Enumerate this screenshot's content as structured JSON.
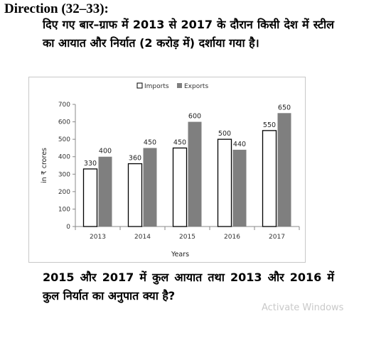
{
  "heading": "Direction (32–33):",
  "intro": "दिए गए बार–ग्राफ में 2013 से 2017 के दौरान किसी देश में स्टील का आयात और निर्यात (2 करोड़ में) दर्शाया गया है।",
  "question": "2015 और 2017 में कुल आयात तथा 2013 और 2016 में कुल निर्यात का अनुपात क्या है?",
  "watermark": "Activate Windows",
  "colors": {
    "imports_fill": "#ffffff",
    "imports_stroke": "#000000",
    "exports_fill": "#7f7f7f"
  },
  "chart_data": {
    "type": "bar",
    "categories": [
      "2013",
      "2014",
      "2015",
      "2016",
      "2017"
    ],
    "series": [
      {
        "name": "Imports",
        "values": [
          330,
          360,
          450,
          500,
          550
        ]
      },
      {
        "name": "Exports",
        "values": [
          400,
          450,
          600,
          440,
          650
        ]
      }
    ],
    "xlabel": "Years",
    "ylabel": "in ₹ crores",
    "ylim": [
      0,
      700
    ],
    "yticks": [
      0,
      100,
      200,
      300,
      400,
      500,
      600,
      700
    ],
    "grid": false,
    "legend": "top-center"
  }
}
